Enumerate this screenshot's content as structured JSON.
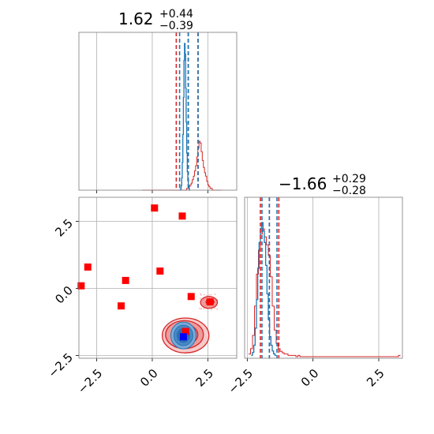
{
  "colors": {
    "posterior": "#1f77b4",
    "prior": "#d62728",
    "marker_red": "#ff0000",
    "marker_blue": "#0000ff"
  },
  "chart_data": {
    "type": "corner",
    "parameters": [
      {
        "title": {
          "median": "1.62",
          "plus": "+0.44",
          "minus": "−0.39"
        },
        "axis_range": [
          -3.3,
          3.8
        ],
        "posterior_quantiles": [
          1.23,
          1.62,
          2.06
        ],
        "prior_quantiles": [
          1.08,
          1.62,
          2.06
        ]
      },
      {
        "title": {
          "median": "−1.66",
          "plus": "+0.29",
          "minus": "−0.28"
        },
        "axis_range": [
          -2.6,
          3.4
        ],
        "posterior_quantiles": [
          -1.94,
          -1.66,
          -1.37
        ],
        "prior_quantiles": [
          -2.0,
          -1.66,
          -1.3
        ]
      }
    ],
    "ticks": {
      "x0": [
        "−2.5",
        "0.0",
        "2.5"
      ],
      "y1": [
        "−2.5",
        "0.0",
        "2.5"
      ],
      "x1": [
        "−2.5",
        "0.0",
        "2.5"
      ]
    },
    "tick_values": [
      -2.5,
      0.0,
      2.5
    ],
    "red_markers": [
      [
        -3.2,
        0.1
      ],
      [
        -2.9,
        0.8
      ],
      [
        -1.2,
        0.3
      ],
      [
        -1.4,
        -0.65
      ],
      [
        0.1,
        3.0
      ],
      [
        1.35,
        2.7
      ],
      [
        0.35,
        0.65
      ],
      [
        1.75,
        -0.3
      ],
      [
        2.6,
        -0.5
      ],
      [
        1.5,
        -1.6
      ]
    ],
    "blue_marker": [
      1.4,
      -1.8
    ],
    "grid": true
  }
}
